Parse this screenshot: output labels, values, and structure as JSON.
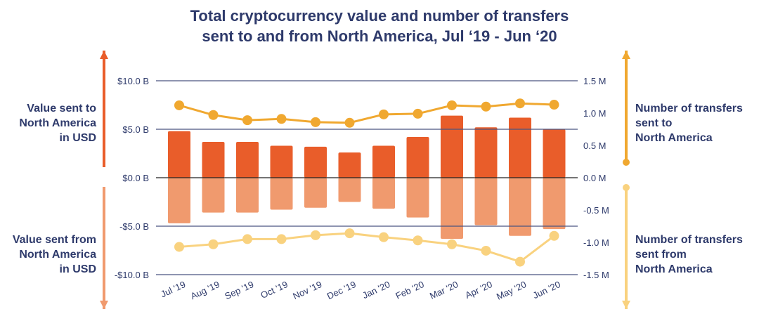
{
  "title_line1": "Total cryptocurrency value and number of transfers",
  "title_line2": "sent to and from North America, Jul ‘19 - Jun ‘20",
  "labels": {
    "left_top": [
      "Value sent to",
      "North America",
      "in USD"
    ],
    "left_bottom": [
      "Value sent from",
      "North America",
      "in USD"
    ],
    "right_top": [
      "Number of transfers",
      "sent to",
      "North America"
    ],
    "right_bottom": [
      "Number of transfers",
      "sent from",
      "North America"
    ]
  },
  "colors": {
    "text": "#2e3a6b",
    "value_to": "#e95d2a",
    "value_from": "#f09a6e",
    "transfers_to": "#f0a830",
    "transfers_from": "#f9d27f",
    "grid": "#4a5580"
  },
  "chart_data": {
    "type": "bar+line",
    "categories": [
      "Jul '19",
      "Aug '19",
      "Sep '19",
      "Oct '19",
      "Nov '19",
      "Dec '19",
      "Jan '20",
      "Feb '20",
      "Mar '20",
      "Apr '20",
      "May '20",
      "Jun '20"
    ],
    "left_axis": {
      "unit": "USD billions",
      "ylim": [
        -10,
        10
      ],
      "ticks": [
        10,
        5,
        0,
        -5,
        -10
      ],
      "tick_labels": [
        "$10.0 B",
        "$5.0 B",
        "$0.0 B",
        "-$5.0 B",
        "-$10.0 B"
      ]
    },
    "right_axis": {
      "unit": "transfers millions",
      "ylim": [
        -1.5,
        1.5
      ],
      "ticks": [
        1.5,
        1.0,
        0.5,
        0.0,
        -0.5,
        -1.0,
        -1.5
      ],
      "tick_labels": [
        "1.5 M",
        "1.0 M",
        "0.5 M",
        "0.0 M",
        "-0.5 M",
        "-1.0 M",
        "-1.5 M"
      ]
    },
    "series": [
      {
        "name": "Value sent to North America in USD",
        "type": "bar",
        "axis": "left",
        "values": [
          4.8,
          3.7,
          3.7,
          3.3,
          3.2,
          2.6,
          3.3,
          4.2,
          6.4,
          5.2,
          6.2,
          5.0
        ]
      },
      {
        "name": "Value sent from North America in USD",
        "type": "bar",
        "axis": "left",
        "values": [
          -4.7,
          -3.6,
          -3.6,
          -3.3,
          -3.1,
          -2.5,
          -3.2,
          -4.1,
          -6.3,
          -4.9,
          -6.0,
          -5.3
        ]
      },
      {
        "name": "Number of transfers sent to North America",
        "type": "line",
        "axis": "right",
        "values": [
          1.12,
          0.97,
          0.89,
          0.91,
          0.86,
          0.85,
          0.98,
          0.99,
          1.12,
          1.1,
          1.15,
          1.13
        ]
      },
      {
        "name": "Number of transfers sent from North America",
        "type": "line",
        "axis": "right",
        "values": [
          -1.07,
          -1.03,
          -0.95,
          -0.95,
          -0.89,
          -0.86,
          -0.92,
          -0.97,
          -1.03,
          -1.13,
          -1.3,
          -0.9
        ]
      }
    ],
    "grid": true
  }
}
